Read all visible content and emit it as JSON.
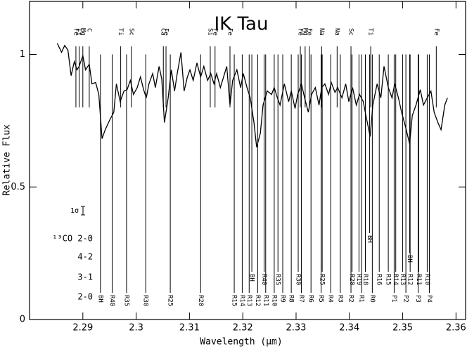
{
  "chart_data": {
    "type": "line",
    "title": "IK Tau",
    "x_label": "Wavelength (μm)",
    "y_label": "Relative Flux",
    "color": "#000000",
    "xlim": [
      2.28,
      2.3618
    ],
    "ylim": [
      0,
      1.2
    ],
    "xticks": [
      2.29,
      2.3,
      2.31,
      2.32,
      2.33,
      2.34,
      2.35,
      2.36
    ],
    "yticks": [
      0,
      0.5,
      1
    ],
    "sigma_label": "1σ",
    "x": [
      2.2852,
      2.286,
      2.2866,
      2.2872,
      2.2878,
      2.2884,
      2.2889,
      2.2893,
      2.29,
      2.2905,
      2.2912,
      2.2917,
      2.2924,
      2.293,
      2.2936,
      2.2942,
      2.295,
      2.2958,
      2.2963,
      2.297,
      2.2977,
      2.2983,
      2.2989,
      2.2995,
      2.3002,
      2.3008,
      2.3014,
      2.3019,
      2.3024,
      2.3031,
      2.3036,
      2.3043,
      2.3048,
      2.3053,
      2.306,
      2.3066,
      2.3072,
      2.3077,
      2.3084,
      2.309,
      2.3096,
      2.3101,
      2.3107,
      2.3114,
      2.3121,
      2.3127,
      2.3134,
      2.314,
      2.3146,
      2.3151,
      2.3158,
      2.3164,
      2.317,
      2.3176,
      2.3181,
      2.3189,
      2.3196,
      2.3201,
      2.3208,
      2.3214,
      2.3221,
      2.3226,
      2.3233,
      2.3238,
      2.3246,
      2.3254,
      2.3259,
      2.3265,
      2.327,
      2.3278,
      2.3286,
      2.3291,
      2.3298,
      2.3303,
      2.331,
      2.3316,
      2.3323,
      2.3329,
      2.3336,
      2.3343,
      2.3348,
      2.3354,
      2.3361,
      2.3366,
      2.3373,
      2.3378,
      2.3386,
      2.3393,
      2.3399,
      2.3406,
      2.3413,
      2.3419,
      2.3426,
      2.3431,
      2.3439,
      2.3444,
      2.3452,
      2.3459,
      2.3465,
      2.3473,
      2.348,
      2.3485,
      2.3492,
      2.3498,
      2.3505,
      2.3513,
      2.3518,
      2.3525,
      2.3533,
      2.3539,
      2.3546,
      2.3553,
      2.3559,
      2.3566,
      2.3572,
      2.3579,
      2.3584
    ],
    "values": [
      1.042,
      1.008,
      1.034,
      1.016,
      0.92,
      0.973,
      0.942,
      0.955,
      0.995,
      0.942,
      0.963,
      0.889,
      0.894,
      0.849,
      0.682,
      0.716,
      0.751,
      0.782,
      0.889,
      0.822,
      0.862,
      0.867,
      0.902,
      0.849,
      0.875,
      0.915,
      0.867,
      0.836,
      0.889,
      0.928,
      0.875,
      0.955,
      0.907,
      0.743,
      0.836,
      0.942,
      0.862,
      0.928,
      1.008,
      0.862,
      0.915,
      0.942,
      0.902,
      0.968,
      0.915,
      0.955,
      0.902,
      0.928,
      0.889,
      0.928,
      0.875,
      0.915,
      0.955,
      0.809,
      0.902,
      0.942,
      0.875,
      0.928,
      0.875,
      0.836,
      0.743,
      0.65,
      0.703,
      0.809,
      0.862,
      0.849,
      0.875,
      0.836,
      0.809,
      0.889,
      0.822,
      0.862,
      0.796,
      0.849,
      0.889,
      0.836,
      0.782,
      0.849,
      0.875,
      0.809,
      0.875,
      0.889,
      0.849,
      0.894,
      0.857,
      0.875,
      0.836,
      0.889,
      0.822,
      0.875,
      0.809,
      0.849,
      0.822,
      0.769,
      0.69,
      0.809,
      0.889,
      0.836,
      0.955,
      0.875,
      0.836,
      0.889,
      0.836,
      0.782,
      0.729,
      0.663,
      0.769,
      0.809,
      0.867,
      0.809,
      0.836,
      0.862,
      0.782,
      0.743,
      0.716,
      0.809,
      0.836
    ],
    "atomic_lines": [
      {
        "x": 2.2887,
        "label": "Fe"
      },
      {
        "x": 2.2893,
        "label": "Ti"
      },
      {
        "x": 2.29,
        "label": "Mg"
      },
      {
        "x": 2.2912,
        "label": "C"
      },
      {
        "x": 2.2971,
        "label": "Ti"
      },
      {
        "x": 2.2991,
        "label": "Sc"
      },
      {
        "x": 2.3051,
        "label": "Ca"
      },
      {
        "x": 2.3056,
        "label": "Fe"
      },
      {
        "x": 2.3139,
        "label": "Si"
      },
      {
        "x": 2.3148,
        "label": "Fe"
      },
      {
        "x": 2.3176,
        "label": "Fe"
      },
      {
        "x": 2.3308,
        "label": "Fe"
      },
      {
        "x": 2.3317,
        "label": "Mg"
      },
      {
        "x": 2.3325,
        "label": "Fe"
      },
      {
        "x": 2.3348,
        "label": "Na"
      },
      {
        "x": 2.3377,
        "label": "Na"
      },
      {
        "x": 2.3403,
        "label": "Sc"
      },
      {
        "x": 2.344,
        "label": "Ti"
      },
      {
        "x": 2.3563,
        "label": "Fe"
      }
    ],
    "co_bands": [
      {
        "name": "2-0",
        "lines": [
          {
            "x": 2.2933,
            "label": "BH"
          },
          {
            "x": 2.2955,
            "label": "R40"
          },
          {
            "x": 2.2982,
            "label": "R35"
          },
          {
            "x": 2.3018,
            "label": "R30"
          },
          {
            "x": 2.3064,
            "label": "R25"
          },
          {
            "x": 2.3121,
            "label": "R20"
          },
          {
            "x": 2.3184,
            "label": "R15"
          },
          {
            "x": 2.3199,
            "label": "R14"
          },
          {
            "x": 2.3212,
            "label": "R13"
          },
          {
            "x": 2.3228,
            "label": "R12"
          },
          {
            "x": 2.3243,
            "label": "R11"
          },
          {
            "x": 2.3259,
            "label": "R10"
          },
          {
            "x": 2.3275,
            "label": "R9"
          },
          {
            "x": 2.3291,
            "label": "R8"
          },
          {
            "x": 2.331,
            "label": "R7"
          },
          {
            "x": 2.3328,
            "label": "R6"
          },
          {
            "x": 2.3347,
            "label": "R5"
          },
          {
            "x": 2.3365,
            "label": "R4"
          },
          {
            "x": 2.3383,
            "label": "R3"
          },
          {
            "x": 2.3403,
            "label": "R2"
          },
          {
            "x": 2.3423,
            "label": "R1"
          },
          {
            "x": 2.3443,
            "label": "R0"
          },
          {
            "x": 2.3484,
            "label": "P1"
          },
          {
            "x": 2.3506,
            "label": "P2"
          },
          {
            "x": 2.3529,
            "label": "P3"
          },
          {
            "x": 2.355,
            "label": "P4"
          }
        ]
      },
      {
        "name": "3-1",
        "lines": [
          {
            "x": 2.3217,
            "label": "BH"
          },
          {
            "x": 2.324,
            "label": "R40"
          },
          {
            "x": 2.3266,
            "label": "R35"
          },
          {
            "x": 2.3304,
            "label": "R30"
          },
          {
            "x": 2.3349,
            "label": "R25"
          },
          {
            "x": 2.3405,
            "label": "R20"
          },
          {
            "x": 2.3418,
            "label": "R19"
          },
          {
            "x": 2.343,
            "label": "R18"
          },
          {
            "x": 2.3456,
            "label": "R16"
          },
          {
            "x": 2.3473,
            "label": "R15"
          },
          {
            "x": 2.3487,
            "label": "R14"
          },
          {
            "x": 2.35,
            "label": "R13"
          },
          {
            "x": 2.3514,
            "label": "R12"
          },
          {
            "x": 2.353,
            "label": "R11"
          },
          {
            "x": 2.3546,
            "label": "R10"
          }
        ]
      },
      {
        "name": "4-2",
        "lines": [
          {
            "x": 2.3513,
            "label": "BH"
          }
        ]
      },
      {
        "name": "¹³CO 2-0",
        "lines": [
          {
            "x": 2.3438,
            "label": "BH"
          }
        ]
      }
    ]
  }
}
